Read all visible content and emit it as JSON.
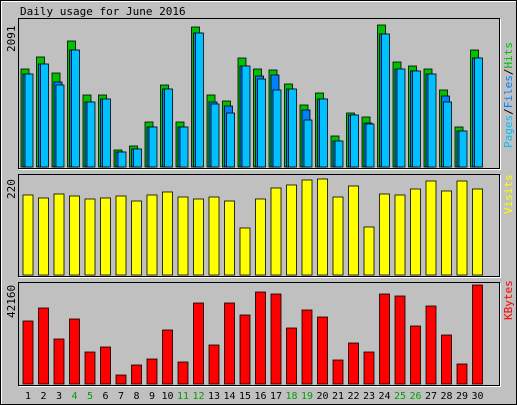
{
  "title": "Daily usage for June 2016",
  "colors": {
    "background": "#c0c0c0",
    "hits": "#00c000",
    "files": "#0080ff",
    "pages": "#00c0ff",
    "visits": "#ffff00",
    "kbytes": "#ff0000",
    "weekend_label": "#00a000",
    "weekday_label": "#000000"
  },
  "chart_data": [
    {
      "type": "bar",
      "panel": "top",
      "title": "Daily usage for June 2016",
      "side_label": [
        "Pages",
        "/",
        "Files",
        "/",
        "Hits"
      ],
      "side_label_colors": [
        "#00c0ff",
        "#000000",
        "#0080ff",
        "#000000",
        "#00c000"
      ],
      "max_label": "2091",
      "ylim": [
        0,
        2091
      ],
      "categories": [
        "1",
        "2",
        "3",
        "4",
        "5",
        "6",
        "7",
        "8",
        "9",
        "10",
        "11",
        "12",
        "13",
        "14",
        "15",
        "16",
        "17",
        "18",
        "19",
        "20",
        "21",
        "22",
        "23",
        "24",
        "25",
        "26",
        "27",
        "28",
        "29",
        "30"
      ],
      "series": [
        {
          "name": "Hits",
          "values": [
            1410,
            1570,
            1340,
            1800,
            1030,
            1030,
            250,
            300,
            640,
            1180,
            650,
            2000,
            1030,
            950,
            1560,
            1410,
            1390,
            1190,
            890,
            1060,
            440,
            770,
            720,
            2040,
            1500,
            1450,
            1410,
            1100,
            570,
            1680
          ]
        },
        {
          "name": "Files",
          "values": [
            1330,
            1470,
            1220,
            1680,
            930,
            980,
            210,
            260,
            580,
            1110,
            570,
            1920,
            930,
            880,
            1450,
            1310,
            1320,
            1110,
            820,
            980,
            370,
            740,
            630,
            1900,
            1400,
            1380,
            1330,
            1020,
            520,
            1560
          ]
        },
        {
          "name": "Pages",
          "values": [
            1330,
            1470,
            1180,
            1680,
            930,
            980,
            210,
            260,
            580,
            1110,
            570,
            1920,
            900,
            780,
            1450,
            1260,
            1100,
            1110,
            680,
            980,
            370,
            740,
            620,
            1900,
            1400,
            1380,
            1330,
            930,
            520,
            1560
          ]
        }
      ]
    },
    {
      "type": "bar",
      "panel": "middle",
      "side_label": [
        "Visits"
      ],
      "side_label_colors": [
        "#ffff00"
      ],
      "max_label": "220",
      "ylim": [
        0,
        220
      ],
      "categories": [
        "1",
        "2",
        "3",
        "4",
        "5",
        "6",
        "7",
        "8",
        "9",
        "10",
        "11",
        "12",
        "13",
        "14",
        "15",
        "16",
        "17",
        "18",
        "19",
        "20",
        "21",
        "22",
        "23",
        "24",
        "25",
        "26",
        "27",
        "28",
        "29",
        "30"
      ],
      "series": [
        {
          "name": "Visits",
          "values": [
            180,
            172,
            182,
            177,
            170,
            173,
            178,
            167,
            179,
            186,
            176,
            171,
            174,
            165,
            105,
            170,
            195,
            201,
            213,
            216,
            176,
            199,
            108,
            181,
            180,
            192,
            212,
            188,
            210,
            194
          ]
        }
      ]
    },
    {
      "type": "bar",
      "panel": "bottom",
      "side_label": [
        "KBytes"
      ],
      "side_label_colors": [
        "#ff0000"
      ],
      "max_label": "42160",
      "ylim": [
        0,
        42160
      ],
      "categories": [
        "1",
        "2",
        "3",
        "4",
        "5",
        "6",
        "7",
        "8",
        "9",
        "10",
        "11",
        "12",
        "13",
        "14",
        "15",
        "16",
        "17",
        "18",
        "19",
        "20",
        "21",
        "22",
        "23",
        "24",
        "25",
        "26",
        "27",
        "28",
        "29",
        "30"
      ],
      "series": [
        {
          "name": "KBytes",
          "values": [
            26900,
            32400,
            19100,
            27500,
            13600,
            15800,
            3700,
            7900,
            10700,
            22800,
            9200,
            34400,
            16500,
            34300,
            29400,
            39000,
            38200,
            23900,
            31700,
            28400,
            10200,
            17300,
            13800,
            38200,
            37300,
            24800,
            33300,
            20900,
            8600,
            42160
          ]
        }
      ]
    }
  ],
  "day_labels": [
    "1",
    "2",
    "3",
    "4",
    "5",
    "6",
    "7",
    "8",
    "9",
    "10",
    "11",
    "12",
    "13",
    "14",
    "15",
    "16",
    "17",
    "18",
    "19",
    "20",
    "21",
    "22",
    "23",
    "24",
    "25",
    "26",
    "27",
    "28",
    "29",
    "30"
  ],
  "weekend_days": [
    "4",
    "5",
    "11",
    "12",
    "18",
    "19",
    "25",
    "26"
  ]
}
